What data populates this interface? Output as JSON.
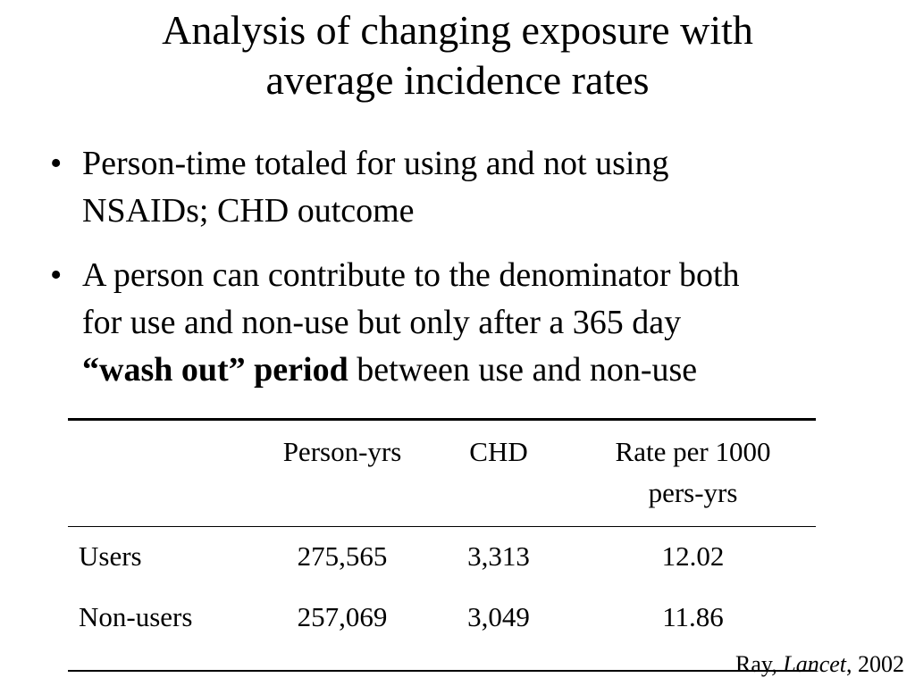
{
  "title": {
    "line1": "Analysis of changing exposure with",
    "line2": "average incidence rates"
  },
  "bullets": [
    {
      "mark": "•",
      "line1": "Person-time totaled for using and not using",
      "line2": "NSAIDs; CHD outcome"
    },
    {
      "mark": "•",
      "line1": "A person can contribute to the denominator both",
      "line2": "for use and non-use but only after a 365 day",
      "bold_phrase": "“wash out” period",
      "line3_rest": " between use and non-use"
    }
  ],
  "table": {
    "headers": {
      "label": "",
      "person_yrs": "Person-yrs",
      "chd": "CHD",
      "rate_line1": "Rate per 1000",
      "rate_line2": "pers-yrs"
    },
    "rows": [
      {
        "label": "Users",
        "person_yrs": "275,565",
        "chd": "3,313",
        "rate": "12.02"
      },
      {
        "label": "Non-users",
        "person_yrs": "257,069",
        "chd": "3,049",
        "rate": "11.86"
      }
    ]
  },
  "citation": {
    "author": "Ray, ",
    "journal": "Lancet",
    "year": ", 2002"
  }
}
